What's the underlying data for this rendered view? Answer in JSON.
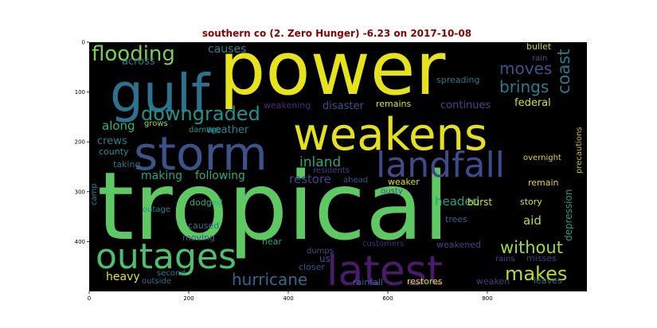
{
  "chart_data": {
    "type": "wordcloud",
    "title": "southern co (2. Zero Hunger) -6.23 on 2017-10-08",
    "xlim": [
      0,
      1000
    ],
    "ylim": [
      500,
      0
    ],
    "x_ticks": [
      0,
      200,
      400,
      600,
      800
    ],
    "y_ticks": [
      0,
      100,
      200,
      300,
      400
    ],
    "background": "#000000",
    "words": [
      {
        "text": "power",
        "color": "#e6e31b"
      },
      {
        "text": "tropical",
        "color": "#5ec962"
      },
      {
        "text": "weakens",
        "color": "#e4e11c"
      },
      {
        "text": "storm",
        "color": "#3b528b"
      },
      {
        "text": "gulf",
        "color": "#2c728e"
      },
      {
        "text": "latest",
        "color": "#4a1a6b"
      },
      {
        "text": "outages",
        "color": "#4ac16d"
      },
      {
        "text": "landfall",
        "color": "#3e4a89"
      },
      {
        "text": "flooding",
        "color": "#7ad151"
      },
      {
        "text": "downgraded",
        "color": "#21918c"
      },
      {
        "text": "makes",
        "color": "#b5de2b"
      },
      {
        "text": "hurricane",
        "color": "#31688e"
      },
      {
        "text": "without",
        "color": "#9fda3a"
      },
      {
        "text": "coast",
        "color": "#2a788e"
      },
      {
        "text": "brings",
        "color": "#287d8e"
      },
      {
        "text": "moves",
        "color": "#3b528b"
      },
      {
        "text": "inland",
        "color": "#22a785"
      },
      {
        "text": "causes",
        "color": "#26828e"
      },
      {
        "text": "across",
        "color": "#287d8e"
      },
      {
        "text": "along",
        "color": "#2fb47c"
      },
      {
        "text": "weather",
        "color": "#25848e"
      },
      {
        "text": "making",
        "color": "#22a884"
      },
      {
        "text": "following",
        "color": "#29af7f"
      },
      {
        "text": "restore",
        "color": "#3f4788"
      },
      {
        "text": "federal",
        "color": "#d2e21b"
      },
      {
        "text": "continues",
        "color": "#3e4989"
      },
      {
        "text": "disaster",
        "color": "#3b518b"
      },
      {
        "text": "weakening",
        "color": "#472c7a"
      },
      {
        "text": "remains",
        "color": "#dde318"
      },
      {
        "text": "grows",
        "color": "#98d83e"
      },
      {
        "text": "damage",
        "color": "#1f998a"
      },
      {
        "text": "crews",
        "color": "#26818e"
      },
      {
        "text": "county",
        "color": "#20928c"
      },
      {
        "text": "taking",
        "color": "#2c718e"
      },
      {
        "text": "headed",
        "color": "#1fa088"
      },
      {
        "text": "aid",
        "color": "#b8de29"
      },
      {
        "text": "story",
        "color": "#d5e21a"
      },
      {
        "text": "remain",
        "color": "#ecd81a"
      },
      {
        "text": "weaker",
        "color": "#d8e219"
      },
      {
        "text": "gusty",
        "color": "#3b528b"
      },
      {
        "text": "ahead",
        "color": "#39568c"
      },
      {
        "text": "residents",
        "color": "#433e85"
      },
      {
        "text": "overnight",
        "color": "#e2d41a"
      },
      {
        "text": "depression",
        "color": "#1f9e89"
      },
      {
        "text": "precautions",
        "color": "#c8c01c"
      },
      {
        "text": "spreading",
        "color": "#2a768e"
      },
      {
        "text": "rain",
        "color": "#38588c"
      },
      {
        "text": "bullet",
        "color": "#c4d414"
      },
      {
        "text": "burst",
        "color": "#d5de1c"
      },
      {
        "text": "trees",
        "color": "#34608d"
      },
      {
        "text": "camp",
        "color": "#25858e"
      },
      {
        "text": "outage",
        "color": "#24868e"
      },
      {
        "text": "dodged",
        "color": "#2db27d"
      },
      {
        "text": "caused",
        "color": "#2d718e"
      },
      {
        "text": "moving",
        "color": "#3a538b"
      },
      {
        "text": "near",
        "color": "#21a585"
      },
      {
        "text": "dumps",
        "color": "#3f4889"
      },
      {
        "text": "customers",
        "color": "#472a7a"
      },
      {
        "text": "weakened",
        "color": "#404387"
      },
      {
        "text": "us",
        "color": "#3b528b"
      },
      {
        "text": "closer",
        "color": "#3a548c"
      },
      {
        "text": "rains",
        "color": "#404688"
      },
      {
        "text": "misses",
        "color": "#433d84"
      },
      {
        "text": "heavy",
        "color": "#dde318"
      },
      {
        "text": "second",
        "color": "#2a778e"
      },
      {
        "text": "outside",
        "color": "#2d708e"
      },
      {
        "text": "rainfall",
        "color": "#34608d"
      },
      {
        "text": "restores",
        "color": "#dae319"
      },
      {
        "text": "weaken",
        "color": "#404388"
      },
      {
        "text": "leaves",
        "color": "#306a8e"
      }
    ]
  }
}
